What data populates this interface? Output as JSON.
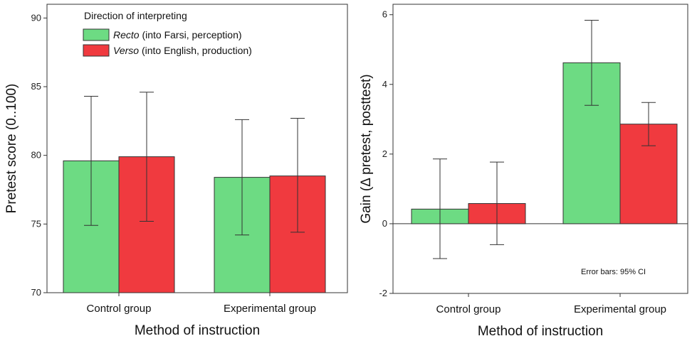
{
  "chart_data": [
    {
      "type": "bar",
      "title": "",
      "xlabel": "Method of instruction",
      "ylabel": "Pretest score (0..100)",
      "ylim": [
        70,
        91
      ],
      "yticks": [
        70,
        75,
        80,
        85,
        90
      ],
      "categories": [
        "Control group",
        "Experimental group"
      ],
      "series": [
        {
          "name": "Recto (into Farsi, perception)",
          "color": "#6ddb83",
          "values": [
            79.6,
            78.4
          ],
          "ci_low": [
            74.9,
            74.2
          ],
          "ci_high": [
            84.3,
            82.6
          ]
        },
        {
          "name": "Verso (into English, production)",
          "color": "#f03a3f",
          "values": [
            79.9,
            78.5
          ],
          "ci_low": [
            75.2,
            74.4
          ],
          "ci_high": [
            84.6,
            82.7
          ]
        }
      ],
      "legend": {
        "title": "Direction of interpreting",
        "placement": "top-left",
        "entries": [
          {
            "emph": "Recto",
            "rest": " (into Farsi, perception)",
            "color": "#6ddb83"
          },
          {
            "emph": "Verso",
            "rest": " (into English, production)",
            "color": "#f03a3f"
          }
        ]
      },
      "grid": false
    },
    {
      "type": "bar",
      "title": "",
      "xlabel": "Method of instruction",
      "ylabel": "Gain (Δ pretest, posttest)",
      "ylim": [
        -2,
        6.3
      ],
      "yticks": [
        -2,
        0,
        2,
        4,
        6
      ],
      "categories": [
        "Control group",
        "Experimental group"
      ],
      "series": [
        {
          "name": "Recto (into Farsi, perception)",
          "color": "#6ddb83",
          "values": [
            0.42,
            4.62
          ],
          "ci_low": [
            -1.0,
            3.4
          ],
          "ci_high": [
            1.86,
            5.84
          ]
        },
        {
          "name": "Verso (into English, production)",
          "color": "#f03a3f",
          "values": [
            0.58,
            2.86
          ],
          "ci_low": [
            -0.6,
            2.24
          ],
          "ci_high": [
            1.77,
            3.48
          ]
        }
      ],
      "annotation": "Error bars: 95% CI",
      "grid": false
    }
  ]
}
